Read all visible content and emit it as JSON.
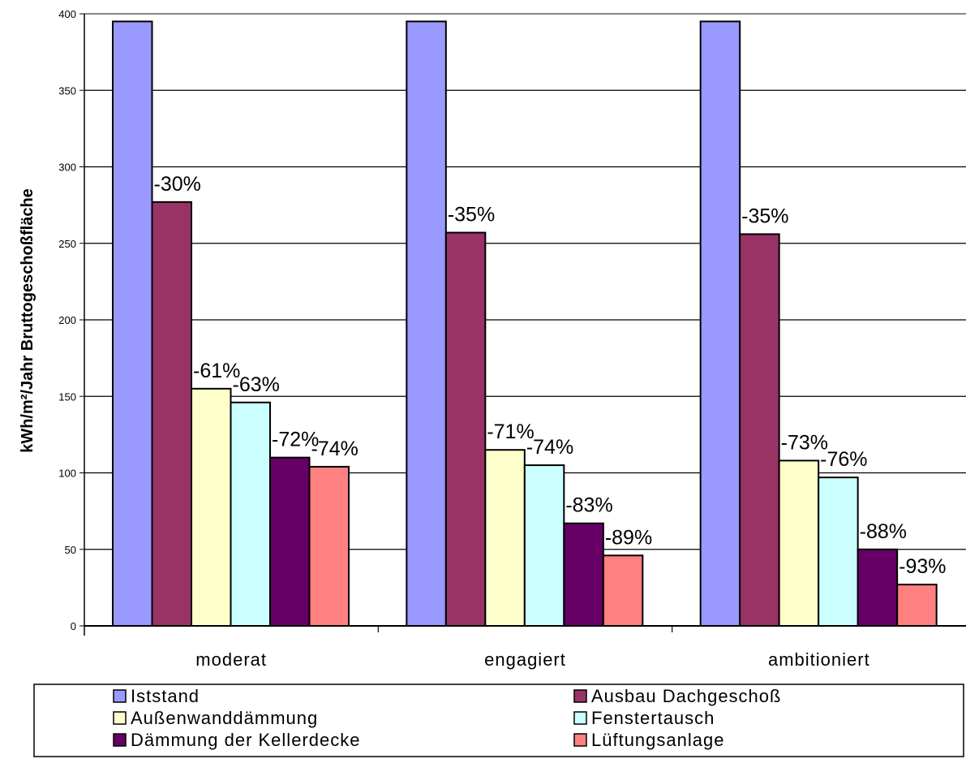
{
  "chart_data": {
    "type": "bar",
    "ylabel": "kWh/m²/Jahr Bruttogeschoßfläche",
    "ylim": [
      0,
      400
    ],
    "yticks": [
      0,
      50,
      100,
      150,
      200,
      250,
      300,
      350,
      400
    ],
    "grid": true,
    "legend_position": "bottom",
    "categories": [
      "moderat",
      "engagiert",
      "ambitioniert"
    ],
    "series": [
      {
        "name": "Iststand",
        "color": "#9999ff",
        "values": [
          395,
          395,
          395
        ],
        "labels": [
          "",
          "",
          ""
        ]
      },
      {
        "name": "Ausbau Dachgeschoß",
        "color": "#993366",
        "values": [
          277,
          257,
          256
        ],
        "labels": [
          "-30%",
          "-35%",
          "-35%"
        ]
      },
      {
        "name": "Außenwanddämmung",
        "color": "#ffffcc",
        "values": [
          155,
          115,
          108
        ],
        "labels": [
          "-61%",
          "-71%",
          "-73%"
        ]
      },
      {
        "name": "Fenstertausch",
        "color": "#ccffff",
        "values": [
          146,
          105,
          97
        ],
        "labels": [
          "-63%",
          "-74%",
          "-76%"
        ]
      },
      {
        "name": "Dämmung der Kellerdecke",
        "color": "#660066",
        "values": [
          110,
          67,
          50
        ],
        "labels": [
          "-72%",
          "-83%",
          "-88%"
        ]
      },
      {
        "name": "Lüftungsanlage",
        "color": "#ff8080",
        "values": [
          104,
          46,
          27
        ],
        "labels": [
          "-74%",
          "-89%",
          "-93%"
        ]
      }
    ]
  }
}
